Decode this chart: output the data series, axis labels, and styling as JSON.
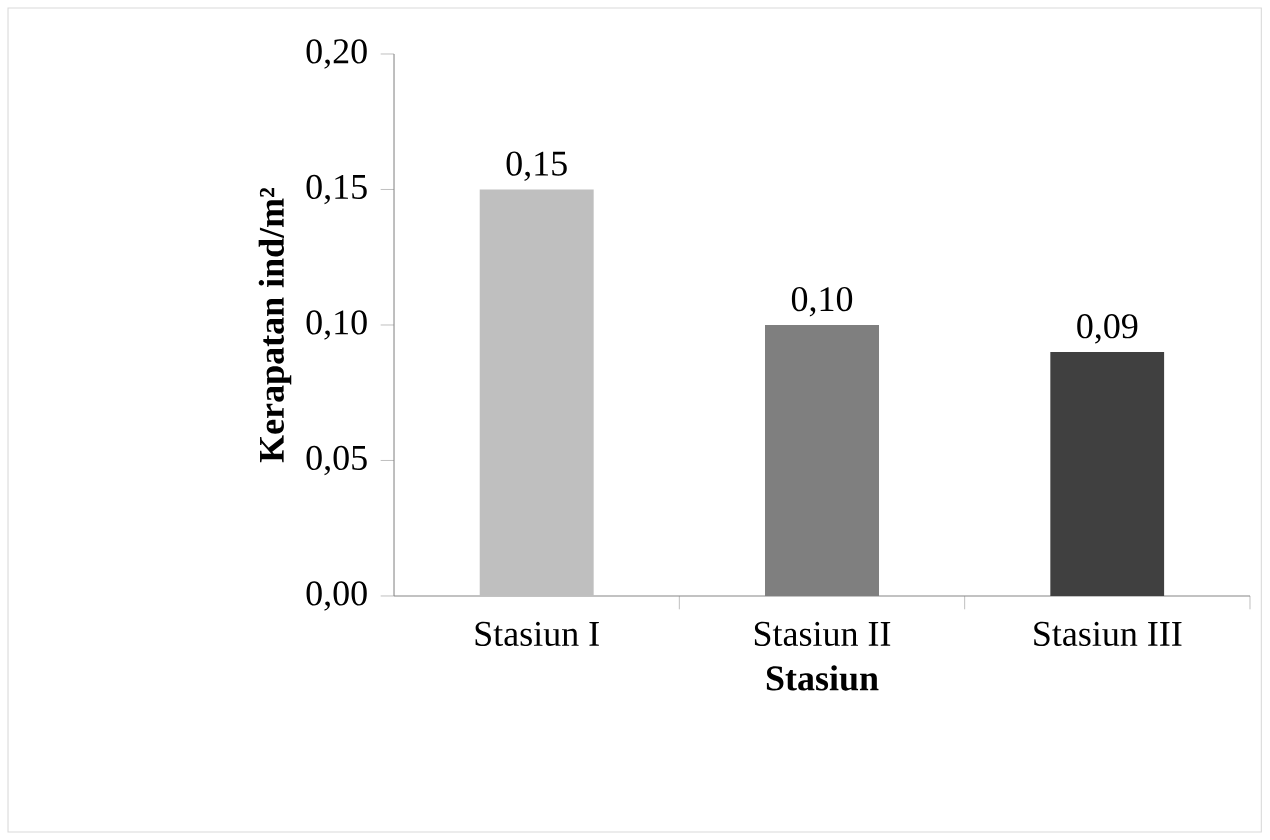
{
  "chart_data": {
    "type": "bar",
    "xlabel": "Stasiun",
    "ylabel": "Kerapatan ind/m²",
    "categories": [
      "Stasiun I",
      "Stasiun II",
      "Stasiun III"
    ],
    "values": [
      0.15,
      0.1,
      0.09
    ],
    "colors": [
      "#bfbfbf",
      "#7f7f7f",
      "#404040"
    ],
    "value_labels": [
      "0,15",
      "0,10",
      "0,09"
    ],
    "ylim": [
      0,
      0.2
    ],
    "yticks": [
      {
        "value": 0,
        "label": "0,00"
      },
      {
        "value": 0.05,
        "label": "0,05"
      },
      {
        "value": 0.1,
        "label": "0,10"
      },
      {
        "value": 0.15,
        "label": "0,15"
      },
      {
        "value": 0.2,
        "label": "0,20"
      }
    ],
    "grid": false
  }
}
